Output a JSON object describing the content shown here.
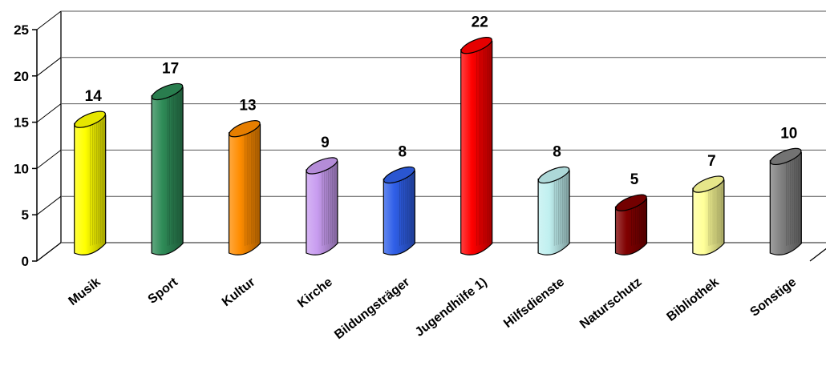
{
  "chart_data": {
    "type": "bar",
    "style": "3d-cylinder",
    "categories": [
      "Musik",
      "Sport",
      "Kultur",
      "Kirche",
      "Bildungsträger",
      "Jugendhilfe 1)",
      "Hilfsdienste",
      "Naturschutz",
      "Bibliothek",
      "Sonstige"
    ],
    "values": [
      14,
      17,
      13,
      9,
      8,
      22,
      8,
      5,
      7,
      10
    ],
    "value_labels": [
      "14",
      "17",
      "13",
      "9",
      "8",
      "22",
      "8",
      "5",
      "7",
      "10"
    ],
    "colors": [
      "#ffff00",
      "#2e8b57",
      "#ff8c00",
      "#c89cf0",
      "#2f5fe8",
      "#ff0000",
      "#c0f0f0",
      "#800000",
      "#ffff99",
      "#808080"
    ],
    "ylim": [
      0,
      25
    ],
    "yticks": [
      0,
      5,
      10,
      15,
      20,
      25
    ],
    "ytick_labels": [
      "0",
      "5",
      "10",
      "15",
      "20",
      "25"
    ],
    "grid": true,
    "title": "",
    "xlabel": "",
    "ylabel": ""
  }
}
